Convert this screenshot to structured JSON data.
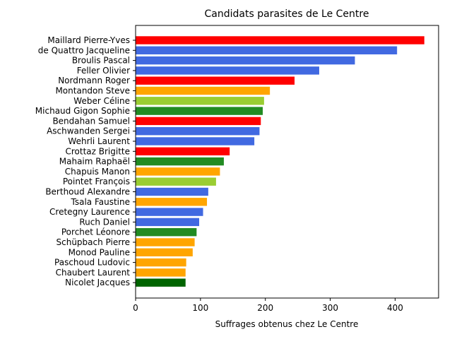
{
  "chart_data": {
    "type": "bar",
    "orientation": "horizontal",
    "title": "Candidats parasites de Le Centre",
    "xlabel": "Suffrages obtenus chez Le Centre",
    "ylabel": "",
    "xlim": [
      0,
      467
    ],
    "xticks": [
      "0",
      "100",
      "200",
      "300",
      "400"
    ],
    "grid": false,
    "categories": [
      "Maillard Pierre-Yves",
      "de Quattro Jacqueline",
      "Broulis Pascal",
      "Feller Olivier",
      "Nordmann Roger",
      "Montandon Steve",
      "Weber Céline",
      "Michaud Gigon Sophie",
      "Bendahan Samuel",
      "Aschwanden Sergei",
      "Wehrli Laurent",
      "Crottaz Brigitte",
      "Mahaim Raphaël",
      "Chapuis Manon",
      "Pointet François",
      "Berthoud Alexandre",
      "Tsala Faustine",
      "Cretegny Laurence",
      "Ruch Daniel",
      "Porchet Léonore",
      "Schüpbach Pierre",
      "Monod Pauline",
      "Paschoud Ludovic",
      "Chaubert Laurent",
      "Nicolet Jacques"
    ],
    "values": [
      445,
      403,
      338,
      283,
      245,
      207,
      198,
      196,
      193,
      191,
      183,
      145,
      136,
      130,
      124,
      112,
      110,
      104,
      98,
      94,
      91,
      88,
      78,
      77,
      77
    ],
    "colors": [
      "#ff0000",
      "#4169e1",
      "#4169e1",
      "#4169e1",
      "#ff0000",
      "#ffa500",
      "#9acd32",
      "#228b22",
      "#ff0000",
      "#4169e1",
      "#4169e1",
      "#ff0000",
      "#228b22",
      "#ffa500",
      "#9acd32",
      "#4169e1",
      "#ffa500",
      "#4169e1",
      "#4169e1",
      "#228b22",
      "#ffa500",
      "#ffa500",
      "#ffa500",
      "#ffa500",
      "#006400"
    ]
  }
}
